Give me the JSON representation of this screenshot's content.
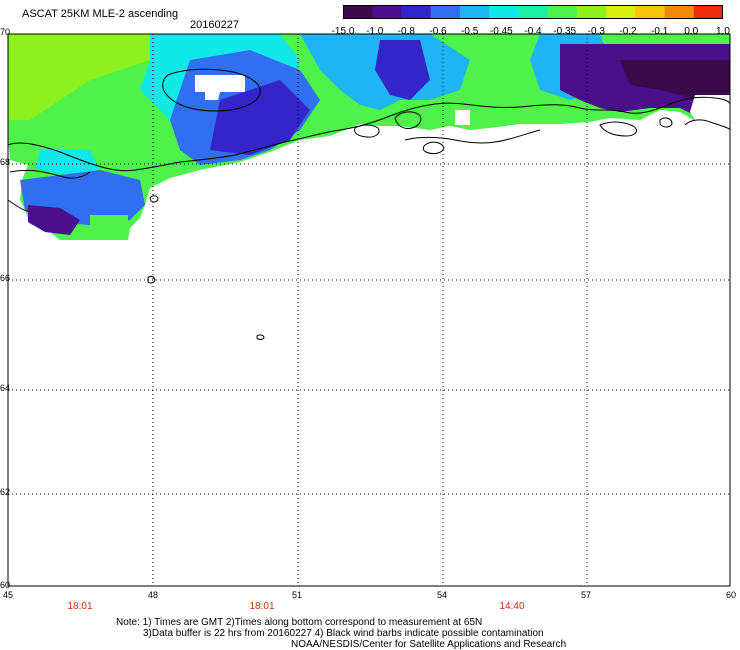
{
  "header": {
    "title": "ASCAT 25KM MLE-2 ascending",
    "date": "20160227"
  },
  "colorbar": {
    "labels": [
      "-15.0",
      "-1.0",
      "-0.8",
      "-0.6",
      "-0.5",
      "-0.45",
      "-0.4",
      "-0.35",
      "-0.3",
      "-0.2",
      "-0.1",
      "0.0",
      "1.0"
    ],
    "colors": [
      "#3a0a4a",
      "#4a0f8a",
      "#3525c8",
      "#2f6ff0",
      "#1fb5f5",
      "#12e8e8",
      "#1ff0a8",
      "#4ef24a",
      "#8ef01e",
      "#d6ef10",
      "#f5c40d",
      "#f58a0a",
      "#ec2c0c"
    ]
  },
  "axes": {
    "lat_labels": [
      "70",
      "68",
      "66",
      "64",
      "62",
      "60"
    ],
    "lon_labels": [
      "45",
      "48",
      "51",
      "54",
      "57",
      "60"
    ],
    "time_labels": [
      "18:01",
      "18:01",
      "14:40"
    ]
  },
  "notes": {
    "line1": "Note: 1) Times are GMT 2)Times along bottom correspond to measurement at 65N",
    "line2": "3)Data buffer is 22 hrs from 20160227 4) Black wind barbs indicate possible contamination",
    "line3": "NOAA/NESDIS/Center for Satellite Applications and Research"
  }
}
